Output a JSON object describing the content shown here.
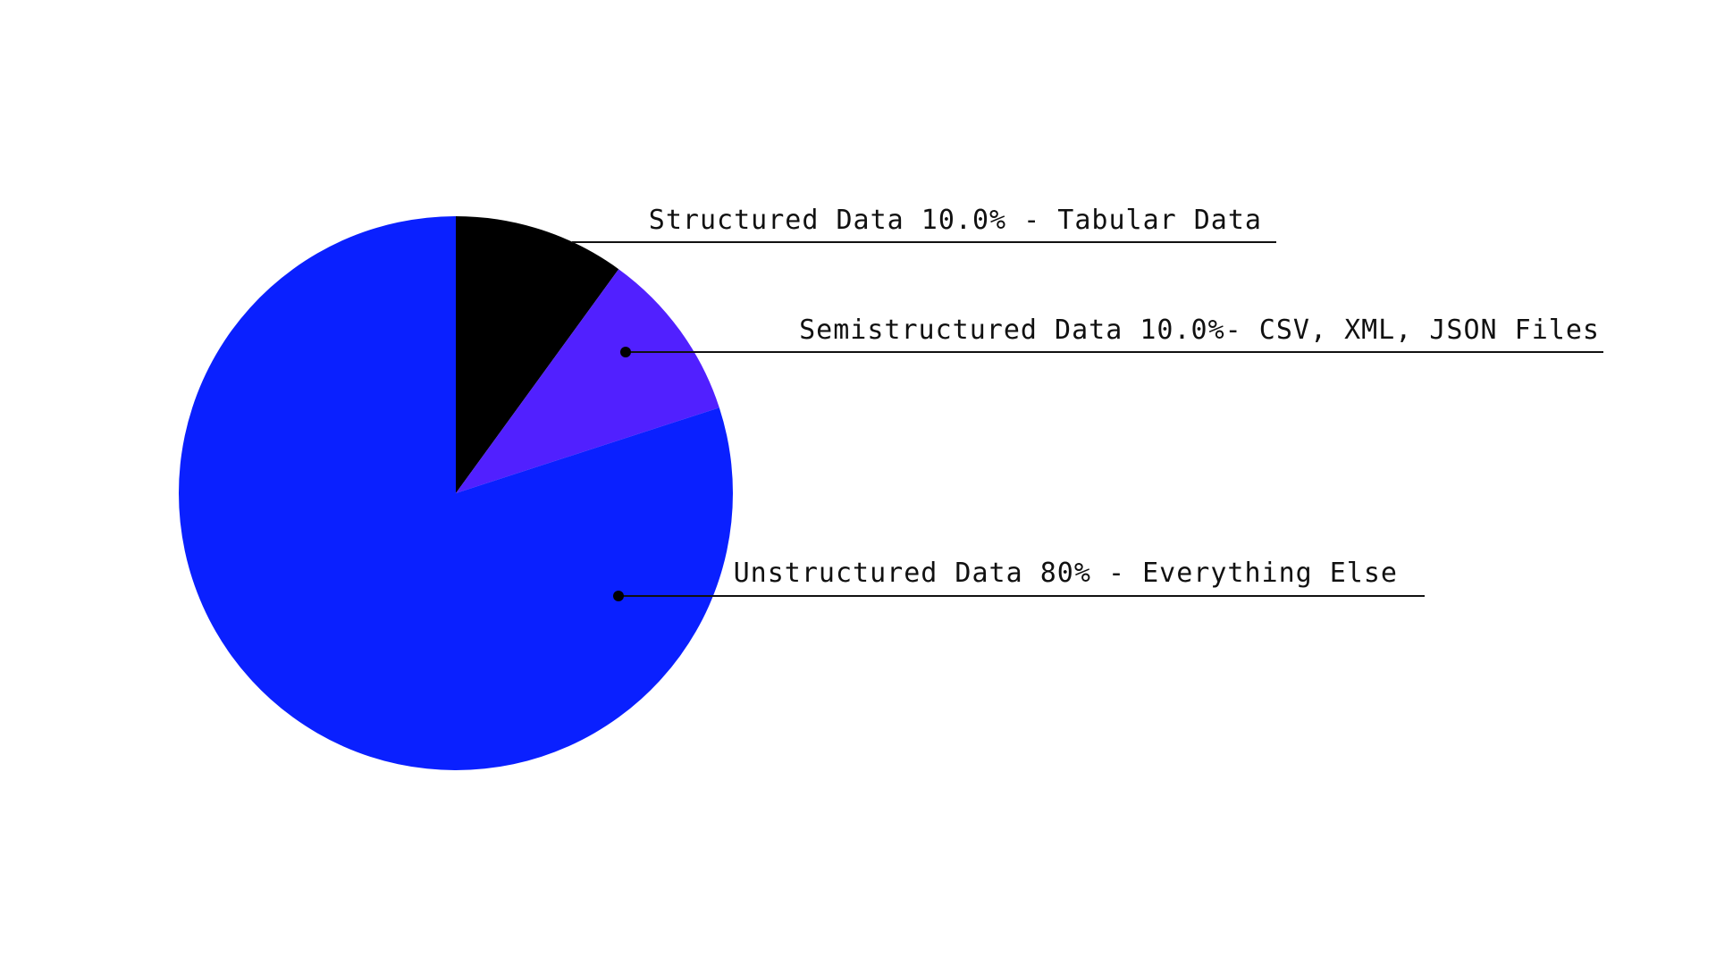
{
  "chart_data": {
    "type": "pie",
    "slices": [
      {
        "label": "Structured Data 10.0% - Tabular Data",
        "value": 10.0,
        "color": "#000000"
      },
      {
        "label": "Semistructured Data 10.0%- CSV, XML, JSON Files",
        "value": 10.0,
        "color": "#5120ff"
      },
      {
        "label": "Unstructured Data 80% - Everything Else",
        "value": 80,
        "color": "#0a20ff"
      }
    ],
    "start_angle_deg": 0,
    "direction": "clockwise"
  }
}
